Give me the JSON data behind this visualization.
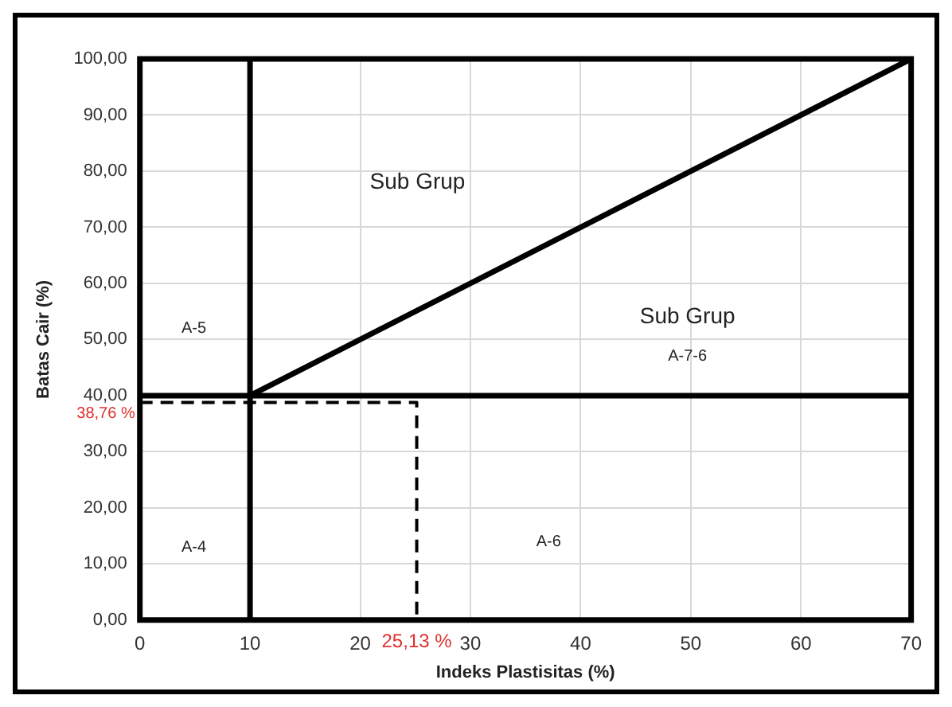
{
  "chart_data": {
    "type": "line",
    "xlabel": "Indeks Plastisitas (%)",
    "ylabel": "Batas Cair (%)",
    "xlim": [
      0,
      70
    ],
    "ylim": [
      0,
      100
    ],
    "xticks": [
      0,
      10,
      20,
      30,
      40,
      50,
      60,
      70
    ],
    "yticks": [
      {
        "value": 0,
        "label": "0,00"
      },
      {
        "value": 10,
        "label": "10,00"
      },
      {
        "value": 20,
        "label": "20,00"
      },
      {
        "value": 30,
        "label": "30,00"
      },
      {
        "value": 40,
        "label": "40,00"
      },
      {
        "value": 50,
        "label": "50,00"
      },
      {
        "value": 60,
        "label": "60,00"
      },
      {
        "value": 70,
        "label": "70,00"
      },
      {
        "value": 80,
        "label": "80,00"
      },
      {
        "value": 90,
        "label": "90,00"
      },
      {
        "value": 100,
        "label": "100,00"
      }
    ],
    "grid": true,
    "marker": "none",
    "series": [
      {
        "color": "#000000",
        "x": [
          10,
          70
        ],
        "values": [
          40,
          100
        ]
      },
      {
        "color": "#000000",
        "x": [
          0,
          70
        ],
        "values": [
          40,
          40
        ]
      },
      {
        "color": "#000000",
        "x": [
          10,
          10
        ],
        "values": [
          0,
          100
        ]
      },
      {
        "color": "#000000",
        "line_style": "dashed",
        "x": [
          0,
          25.13,
          25.13
        ],
        "values": [
          38.76,
          38.76,
          0
        ]
      }
    ],
    "annotations": [
      "Sub Grup",
      "A-5",
      "Sub Grup",
      "A-7-6",
      "A-4",
      "A-6",
      {
        "text": "38,76 %",
        "x": 0,
        "y": 38.76
      },
      {
        "text": "25,13 %",
        "x": 25.13,
        "y": 0
      }
    ]
  }
}
